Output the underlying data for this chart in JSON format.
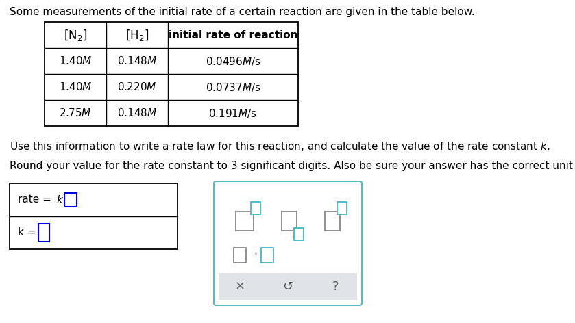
{
  "bg_color": "#ffffff",
  "intro_text": "Some measurements of the initial rate of a certain reaction are given in the table below.",
  "col1_header_math": "$\\left[\\mathrm{N_2}\\right]$",
  "col2_header_math": "$\\left[\\mathrm{H_2}\\right]$",
  "col3_header": "initial rate of reaction",
  "rows": [
    [
      "1.40",
      "0.148",
      "0.0496"
    ],
    [
      "1.40",
      "0.220",
      "0.0737"
    ],
    [
      "2.75",
      "0.148",
      "0.191"
    ]
  ],
  "instruction1_pre": "Use this information to write a rate law for this reaction, and calculate the value of the rate constant ",
  "instruction1_post": ".",
  "instruction2": "Round your value for the rate constant to 3 significant digits. Also be sure your answer has the correct unit symbol.",
  "font_size": 11,
  "table_border_color": "#000000",
  "answer_box_border": "#0000dd",
  "panel_border_color": "#5bb8c4",
  "panel_strip_color": "#e0e4e8",
  "strip_text_color": "#555555",
  "btn_main_color": "#888888",
  "btn_accent_color": "#3bb8c4"
}
